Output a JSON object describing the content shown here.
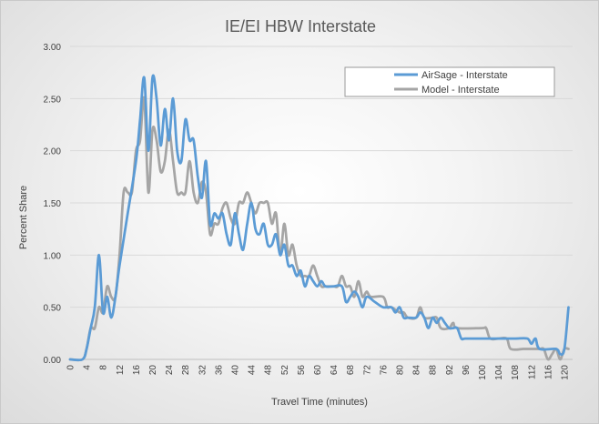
{
  "chart_data": {
    "type": "line",
    "title": "IE/EI HBW Interstate",
    "xlabel": "Travel Time (minutes)",
    "ylabel": "Percent Share",
    "xlim": [
      0,
      122
    ],
    "ylim": [
      0,
      3.0
    ],
    "x_ticks": [
      0,
      4,
      8,
      12,
      16,
      20,
      24,
      28,
      32,
      36,
      40,
      44,
      48,
      52,
      56,
      60,
      64,
      68,
      72,
      76,
      80,
      84,
      88,
      92,
      96,
      100,
      104,
      108,
      112,
      116,
      120
    ],
    "y_ticks": [
      "0.00",
      "0.50",
      "1.00",
      "1.50",
      "2.00",
      "2.50",
      "3.00"
    ],
    "grid": "horizontal",
    "legend_position": "top-right",
    "series": [
      {
        "name": "AirSage - Interstate",
        "color": "#5b9bd5",
        "points": [
          [
            0,
            0
          ],
          [
            3,
            0
          ],
          [
            4,
            0.1
          ],
          [
            5,
            0.3
          ],
          [
            6,
            0.5
          ],
          [
            7,
            1.0
          ],
          [
            8,
            0.45
          ],
          [
            9,
            0.6
          ],
          [
            10,
            0.4
          ],
          [
            11,
            0.6
          ],
          [
            12,
            0.9
          ],
          [
            14,
            1.4
          ],
          [
            16,
            1.9
          ],
          [
            17,
            2.3
          ],
          [
            18,
            2.7
          ],
          [
            19,
            2.0
          ],
          [
            20,
            2.7
          ],
          [
            21,
            2.5
          ],
          [
            22,
            2.05
          ],
          [
            23,
            2.4
          ],
          [
            24,
            2.1
          ],
          [
            25,
            2.5
          ],
          [
            26,
            2.0
          ],
          [
            27,
            1.9
          ],
          [
            28,
            2.3
          ],
          [
            29,
            2.1
          ],
          [
            30,
            2.1
          ],
          [
            31,
            1.75
          ],
          [
            32,
            1.55
          ],
          [
            33,
            1.9
          ],
          [
            34,
            1.3
          ],
          [
            35,
            1.4
          ],
          [
            36,
            1.35
          ],
          [
            37,
            1.4
          ],
          [
            38,
            1.2
          ],
          [
            39,
            1.1
          ],
          [
            40,
            1.4
          ],
          [
            41,
            1.2
          ],
          [
            42,
            1.05
          ],
          [
            43,
            1.3
          ],
          [
            44,
            1.5
          ],
          [
            45,
            1.25
          ],
          [
            46,
            1.2
          ],
          [
            47,
            1.3
          ],
          [
            48,
            1.1
          ],
          [
            49,
            1.1
          ],
          [
            50,
            1.2
          ],
          [
            51,
            1.0
          ],
          [
            52,
            1.1
          ],
          [
            53,
            0.9
          ],
          [
            54,
            0.9
          ],
          [
            55,
            0.8
          ],
          [
            56,
            0.85
          ],
          [
            57,
            0.7
          ],
          [
            58,
            0.8
          ],
          [
            59,
            0.75
          ],
          [
            60,
            0.7
          ],
          [
            61,
            0.75
          ],
          [
            62,
            0.7
          ],
          [
            64,
            0.7
          ],
          [
            66,
            0.7
          ],
          [
            67,
            0.55
          ],
          [
            68,
            0.6
          ],
          [
            69,
            0.65
          ],
          [
            70,
            0.6
          ],
          [
            71,
            0.5
          ],
          [
            72,
            0.6
          ],
          [
            74,
            0.55
          ],
          [
            76,
            0.5
          ],
          [
            78,
            0.5
          ],
          [
            79,
            0.45
          ],
          [
            80,
            0.5
          ],
          [
            81,
            0.4
          ],
          [
            82,
            0.4
          ],
          [
            84,
            0.4
          ],
          [
            85,
            0.45
          ],
          [
            86,
            0.4
          ],
          [
            87,
            0.3
          ],
          [
            88,
            0.4
          ],
          [
            89,
            0.35
          ],
          [
            90,
            0.4
          ],
          [
            91,
            0.35
          ],
          [
            92,
            0.3
          ],
          [
            93,
            0.3
          ],
          [
            94,
            0.3
          ],
          [
            95,
            0.2
          ],
          [
            96,
            0.2
          ],
          [
            100,
            0.2
          ],
          [
            104,
            0.2
          ],
          [
            108,
            0.2
          ],
          [
            111,
            0.2
          ],
          [
            112,
            0.15
          ],
          [
            113,
            0.2
          ],
          [
            114,
            0.1
          ],
          [
            118,
            0.1
          ],
          [
            119,
            0.05
          ],
          [
            120,
            0.1
          ],
          [
            121,
            0.5
          ]
        ]
      },
      {
        "name": "Model - Interstate",
        "color": "#a5a5a5",
        "points": [
          [
            0,
            0
          ],
          [
            3,
            0
          ],
          [
            4,
            0.1
          ],
          [
            5,
            0.3
          ],
          [
            6,
            0.3
          ],
          [
            7,
            0.5
          ],
          [
            8,
            0.45
          ],
          [
            9,
            0.7
          ],
          [
            10,
            0.6
          ],
          [
            11,
            0.6
          ],
          [
            12,
            1.0
          ],
          [
            13,
            1.6
          ],
          [
            14,
            1.6
          ],
          [
            15,
            1.6
          ],
          [
            16,
            2.0
          ],
          [
            17,
            2.1
          ],
          [
            18,
            2.5
          ],
          [
            19,
            1.6
          ],
          [
            20,
            2.2
          ],
          [
            21,
            2.1
          ],
          [
            22,
            1.8
          ],
          [
            23,
            1.9
          ],
          [
            24,
            2.2
          ],
          [
            25,
            1.9
          ],
          [
            26,
            1.6
          ],
          [
            27,
            1.6
          ],
          [
            28,
            1.6
          ],
          [
            29,
            1.9
          ],
          [
            30,
            1.6
          ],
          [
            31,
            1.5
          ],
          [
            32,
            1.7
          ],
          [
            33,
            1.6
          ],
          [
            34,
            1.2
          ],
          [
            35,
            1.3
          ],
          [
            36,
            1.3
          ],
          [
            37,
            1.45
          ],
          [
            38,
            1.5
          ],
          [
            39,
            1.35
          ],
          [
            40,
            1.3
          ],
          [
            41,
            1.5
          ],
          [
            42,
            1.5
          ],
          [
            43,
            1.6
          ],
          [
            44,
            1.5
          ],
          [
            45,
            1.4
          ],
          [
            46,
            1.5
          ],
          [
            47,
            1.5
          ],
          [
            48,
            1.5
          ],
          [
            49,
            1.3
          ],
          [
            50,
            1.4
          ],
          [
            51,
            1.0
          ],
          [
            52,
            1.3
          ],
          [
            53,
            1.0
          ],
          [
            54,
            1.1
          ],
          [
            55,
            0.9
          ],
          [
            56,
            0.8
          ],
          [
            57,
            0.8
          ],
          [
            58,
            0.8
          ],
          [
            59,
            0.9
          ],
          [
            60,
            0.8
          ],
          [
            61,
            0.7
          ],
          [
            62,
            0.7
          ],
          [
            64,
            0.7
          ],
          [
            65,
            0.7
          ],
          [
            66,
            0.8
          ],
          [
            67,
            0.7
          ],
          [
            68,
            0.7
          ],
          [
            69,
            0.6
          ],
          [
            70,
            0.75
          ],
          [
            71,
            0.6
          ],
          [
            72,
            0.65
          ],
          [
            73,
            0.6
          ],
          [
            76,
            0.6
          ],
          [
            77,
            0.5
          ],
          [
            78,
            0.5
          ],
          [
            80,
            0.45
          ],
          [
            81,
            0.45
          ],
          [
            82,
            0.4
          ],
          [
            84,
            0.4
          ],
          [
            85,
            0.5
          ],
          [
            86,
            0.4
          ],
          [
            88,
            0.4
          ],
          [
            89,
            0.4
          ],
          [
            90,
            0.3
          ],
          [
            92,
            0.3
          ],
          [
            93,
            0.35
          ],
          [
            94,
            0.3
          ],
          [
            100,
            0.3
          ],
          [
            101,
            0.3
          ],
          [
            102,
            0.2
          ],
          [
            104,
            0.2
          ],
          [
            106,
            0.2
          ],
          [
            107,
            0.1
          ],
          [
            110,
            0.1
          ],
          [
            111,
            0.1
          ],
          [
            114,
            0.1
          ],
          [
            115,
            0.1
          ],
          [
            116,
            0
          ],
          [
            117,
            0.05
          ],
          [
            118,
            0.1
          ],
          [
            119,
            0
          ],
          [
            120,
            0.1
          ],
          [
            121,
            0.1
          ]
        ]
      }
    ]
  }
}
